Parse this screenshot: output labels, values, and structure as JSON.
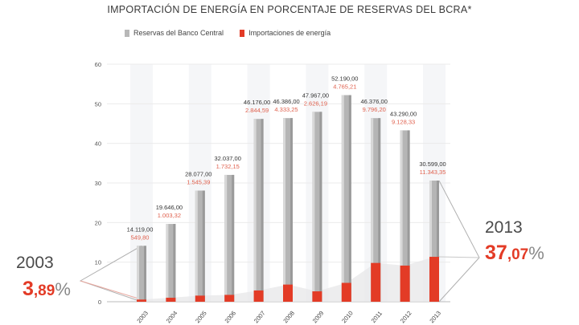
{
  "chart_data": {
    "type": "bar",
    "title": "IMPORTACIÓN DE ENERGÍA EN PORCENTAJE DE RESERVAS DEL BCRA*",
    "categories": [
      "2003",
      "2004",
      "2005",
      "2006",
      "2007",
      "2008",
      "2009",
      "2010",
      "2011",
      "2012",
      "2013"
    ],
    "series": [
      {
        "name": "Reservas del Banco Central",
        "color": "#b8b8b8",
        "values": [
          14119,
          19646,
          28077,
          32037,
          46176,
          46386,
          47967,
          52190,
          46376,
          43290,
          30599
        ],
        "labels": [
          "14.119,00",
          "19.646,00",
          "28.077,00",
          "32.037,00",
          "46.176,00",
          "46.386,00",
          "47.967,00",
          "52.190,00",
          "46.376,00",
          "43.290,00",
          "30.599,00"
        ]
      },
      {
        "name": "Importaciones de energía",
        "color": "#e33b26",
        "values": [
          549.8,
          1003.32,
          1545.39,
          1732.15,
          2844.59,
          4333.25,
          2626.19,
          4765.21,
          9796.2,
          9128.33,
          11343.35
        ],
        "labels": [
          "549,80",
          "1.003,32",
          "1.545,39",
          "1.732,15",
          "2.844,59",
          "4.333,25",
          "2.626,19",
          "4.765,21",
          "9.796,20",
          "9.128,33",
          "11.343,35"
        ]
      }
    ],
    "yticks": [
      "0",
      "10",
      "20",
      "30",
      "40",
      "50",
      "60"
    ],
    "ylim": [
      0,
      60000
    ],
    "xlabel": "",
    "ylabel": "",
    "grid": true,
    "legend_position": "top-left",
    "callouts": [
      {
        "year": "2003",
        "int": "3",
        "dec": ",89",
        "pct": "%"
      },
      {
        "year": "2013",
        "int": "37",
        "dec": ",07",
        "pct": "%"
      }
    ]
  }
}
